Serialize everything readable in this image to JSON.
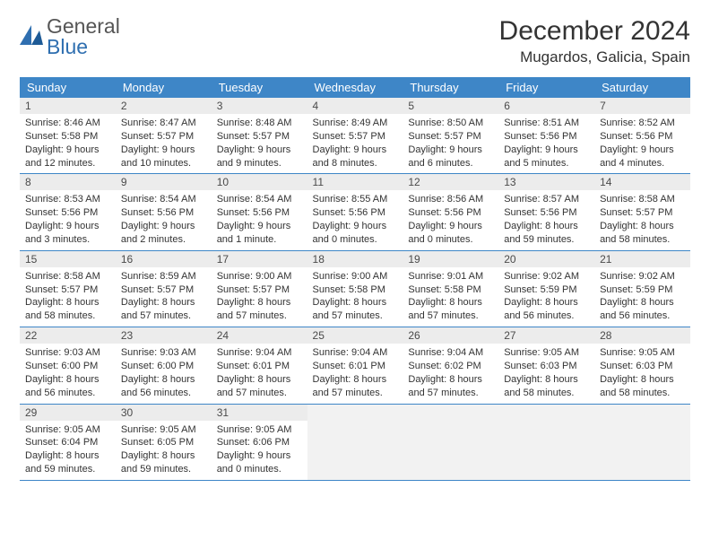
{
  "logo": {
    "text1": "General",
    "text2": "Blue"
  },
  "title": "December 2024",
  "location": "Mugardos, Galicia, Spain",
  "colors": {
    "header_bg": "#3e86c7",
    "header_text": "#ffffff",
    "daynum_bg": "#ececec",
    "cell_border": "#3e86c7",
    "empty_bg": "#f2f2f2",
    "logo_blue": "#2f6fb0",
    "logo_gray": "#555555"
  },
  "dow": [
    "Sunday",
    "Monday",
    "Tuesday",
    "Wednesday",
    "Thursday",
    "Friday",
    "Saturday"
  ],
  "weeks": [
    [
      {
        "n": "1",
        "sunrise": "8:46 AM",
        "sunset": "5:58 PM",
        "daylight": "9 hours and 12 minutes."
      },
      {
        "n": "2",
        "sunrise": "8:47 AM",
        "sunset": "5:57 PM",
        "daylight": "9 hours and 10 minutes."
      },
      {
        "n": "3",
        "sunrise": "8:48 AM",
        "sunset": "5:57 PM",
        "daylight": "9 hours and 9 minutes."
      },
      {
        "n": "4",
        "sunrise": "8:49 AM",
        "sunset": "5:57 PM",
        "daylight": "9 hours and 8 minutes."
      },
      {
        "n": "5",
        "sunrise": "8:50 AM",
        "sunset": "5:57 PM",
        "daylight": "9 hours and 6 minutes."
      },
      {
        "n": "6",
        "sunrise": "8:51 AM",
        "sunset": "5:56 PM",
        "daylight": "9 hours and 5 minutes."
      },
      {
        "n": "7",
        "sunrise": "8:52 AM",
        "sunset": "5:56 PM",
        "daylight": "9 hours and 4 minutes."
      }
    ],
    [
      {
        "n": "8",
        "sunrise": "8:53 AM",
        "sunset": "5:56 PM",
        "daylight": "9 hours and 3 minutes."
      },
      {
        "n": "9",
        "sunrise": "8:54 AM",
        "sunset": "5:56 PM",
        "daylight": "9 hours and 2 minutes."
      },
      {
        "n": "10",
        "sunrise": "8:54 AM",
        "sunset": "5:56 PM",
        "daylight": "9 hours and 1 minute."
      },
      {
        "n": "11",
        "sunrise": "8:55 AM",
        "sunset": "5:56 PM",
        "daylight": "9 hours and 0 minutes."
      },
      {
        "n": "12",
        "sunrise": "8:56 AM",
        "sunset": "5:56 PM",
        "daylight": "9 hours and 0 minutes."
      },
      {
        "n": "13",
        "sunrise": "8:57 AM",
        "sunset": "5:56 PM",
        "daylight": "8 hours and 59 minutes."
      },
      {
        "n": "14",
        "sunrise": "8:58 AM",
        "sunset": "5:57 PM",
        "daylight": "8 hours and 58 minutes."
      }
    ],
    [
      {
        "n": "15",
        "sunrise": "8:58 AM",
        "sunset": "5:57 PM",
        "daylight": "8 hours and 58 minutes."
      },
      {
        "n": "16",
        "sunrise": "8:59 AM",
        "sunset": "5:57 PM",
        "daylight": "8 hours and 57 minutes."
      },
      {
        "n": "17",
        "sunrise": "9:00 AM",
        "sunset": "5:57 PM",
        "daylight": "8 hours and 57 minutes."
      },
      {
        "n": "18",
        "sunrise": "9:00 AM",
        "sunset": "5:58 PM",
        "daylight": "8 hours and 57 minutes."
      },
      {
        "n": "19",
        "sunrise": "9:01 AM",
        "sunset": "5:58 PM",
        "daylight": "8 hours and 57 minutes."
      },
      {
        "n": "20",
        "sunrise": "9:02 AM",
        "sunset": "5:59 PM",
        "daylight": "8 hours and 56 minutes."
      },
      {
        "n": "21",
        "sunrise": "9:02 AM",
        "sunset": "5:59 PM",
        "daylight": "8 hours and 56 minutes."
      }
    ],
    [
      {
        "n": "22",
        "sunrise": "9:03 AM",
        "sunset": "6:00 PM",
        "daylight": "8 hours and 56 minutes."
      },
      {
        "n": "23",
        "sunrise": "9:03 AM",
        "sunset": "6:00 PM",
        "daylight": "8 hours and 56 minutes."
      },
      {
        "n": "24",
        "sunrise": "9:04 AM",
        "sunset": "6:01 PM",
        "daylight": "8 hours and 57 minutes."
      },
      {
        "n": "25",
        "sunrise": "9:04 AM",
        "sunset": "6:01 PM",
        "daylight": "8 hours and 57 minutes."
      },
      {
        "n": "26",
        "sunrise": "9:04 AM",
        "sunset": "6:02 PM",
        "daylight": "8 hours and 57 minutes."
      },
      {
        "n": "27",
        "sunrise": "9:05 AM",
        "sunset": "6:03 PM",
        "daylight": "8 hours and 58 minutes."
      },
      {
        "n": "28",
        "sunrise": "9:05 AM",
        "sunset": "6:03 PM",
        "daylight": "8 hours and 58 minutes."
      }
    ],
    [
      {
        "n": "29",
        "sunrise": "9:05 AM",
        "sunset": "6:04 PM",
        "daylight": "8 hours and 59 minutes."
      },
      {
        "n": "30",
        "sunrise": "9:05 AM",
        "sunset": "6:05 PM",
        "daylight": "8 hours and 59 minutes."
      },
      {
        "n": "31",
        "sunrise": "9:05 AM",
        "sunset": "6:06 PM",
        "daylight": "9 hours and 0 minutes."
      },
      null,
      null,
      null,
      null
    ]
  ],
  "labels": {
    "sunrise": "Sunrise:",
    "sunset": "Sunset:",
    "daylight": "Daylight:"
  }
}
